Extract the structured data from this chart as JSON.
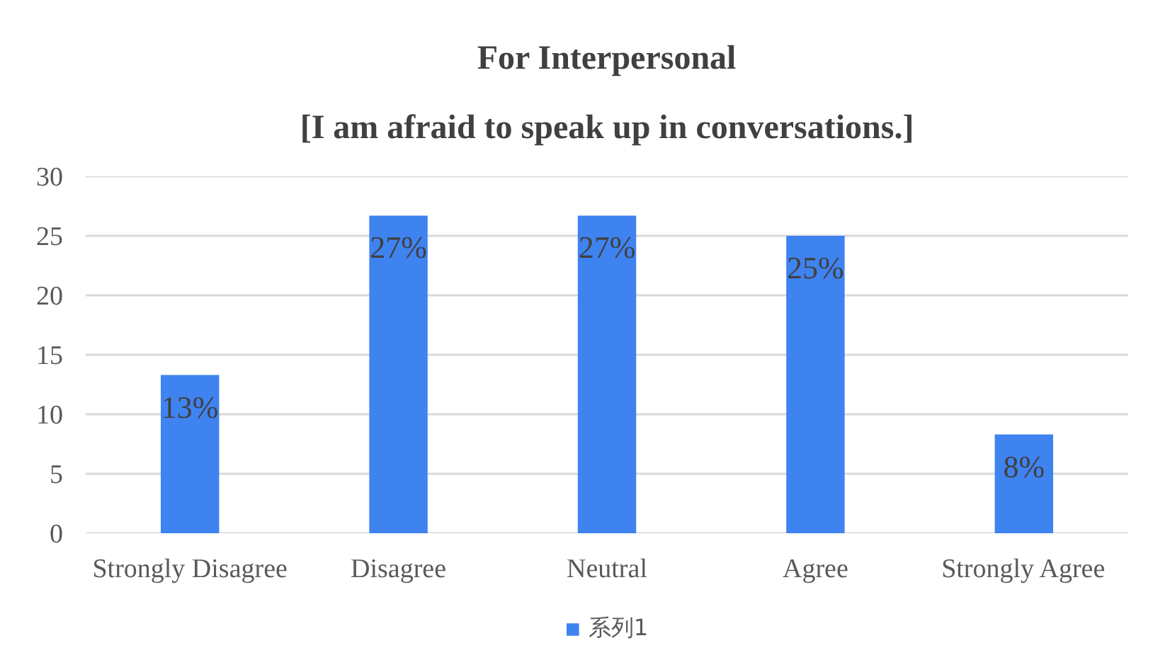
{
  "chart_data": {
    "type": "bar",
    "title": "For Interpersonal",
    "subtitle": "[I am afraid to speak up in conversations.]",
    "categories": [
      "Strongly Disagree",
      "Disagree",
      "Neutral",
      "Agree",
      "Strongly Agree"
    ],
    "series": [
      {
        "name": "系列1",
        "color": "#3f83f1",
        "values": [
          13.3,
          26.7,
          26.7,
          25,
          8.3
        ],
        "value_labels": [
          "13%",
          "27%",
          "27%",
          "25%",
          "8%"
        ]
      }
    ],
    "ylim": [
      0,
      30
    ],
    "yticks": [
      0,
      5,
      10,
      15,
      20,
      25,
      30
    ],
    "grid": "y",
    "legend": "bottom"
  }
}
